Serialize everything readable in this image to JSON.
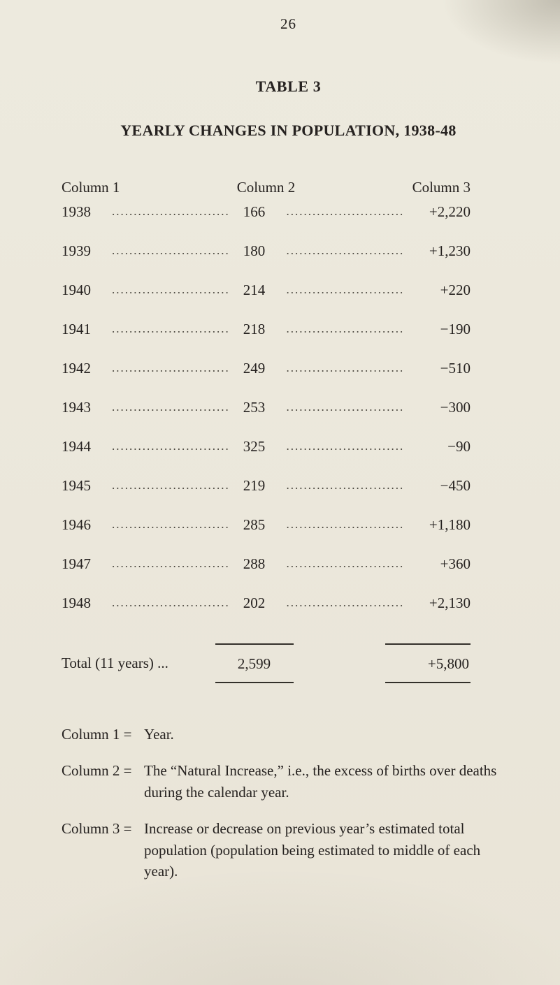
{
  "page": {
    "number": "26",
    "title": "TABLE 3",
    "subtitle": "YEARLY CHANGES IN POPULATION, 1938-48"
  },
  "table": {
    "headers": [
      "Column 1",
      "Column 2",
      "Column 3"
    ],
    "rows": [
      {
        "year": "1938",
        "col2": "166",
        "col3": "+2,220"
      },
      {
        "year": "1939",
        "col2": "180",
        "col3": "+1,230"
      },
      {
        "year": "1940",
        "col2": "214",
        "col3": "+220"
      },
      {
        "year": "1941",
        "col2": "218",
        "col3": "−190"
      },
      {
        "year": "1942",
        "col2": "249",
        "col3": "−510"
      },
      {
        "year": "1943",
        "col2": "253",
        "col3": "−300"
      },
      {
        "year": "1944",
        "col2": "325",
        "col3": "−90"
      },
      {
        "year": "1945",
        "col2": "219",
        "col3": "−450"
      },
      {
        "year": "1946",
        "col2": "285",
        "col3": "+1,180"
      },
      {
        "year": "1947",
        "col2": "288",
        "col3": "+360"
      },
      {
        "year": "1948",
        "col2": "202",
        "col3": "+2,130"
      }
    ],
    "total": {
      "label": "Total (11 years) ...",
      "col2": "2,599",
      "col3": "+5,800"
    }
  },
  "footnotes": [
    {
      "label": "Column 1 =",
      "text": "Year."
    },
    {
      "label": "Column 2 =",
      "text": "The “Natural Increase,” i.e., the excess of births over deaths during the calendar year."
    },
    {
      "label": "Column 3 =",
      "text": "Increase or decrease on previous year’s estimated total population (population being estimated to middle of each year)."
    }
  ]
}
